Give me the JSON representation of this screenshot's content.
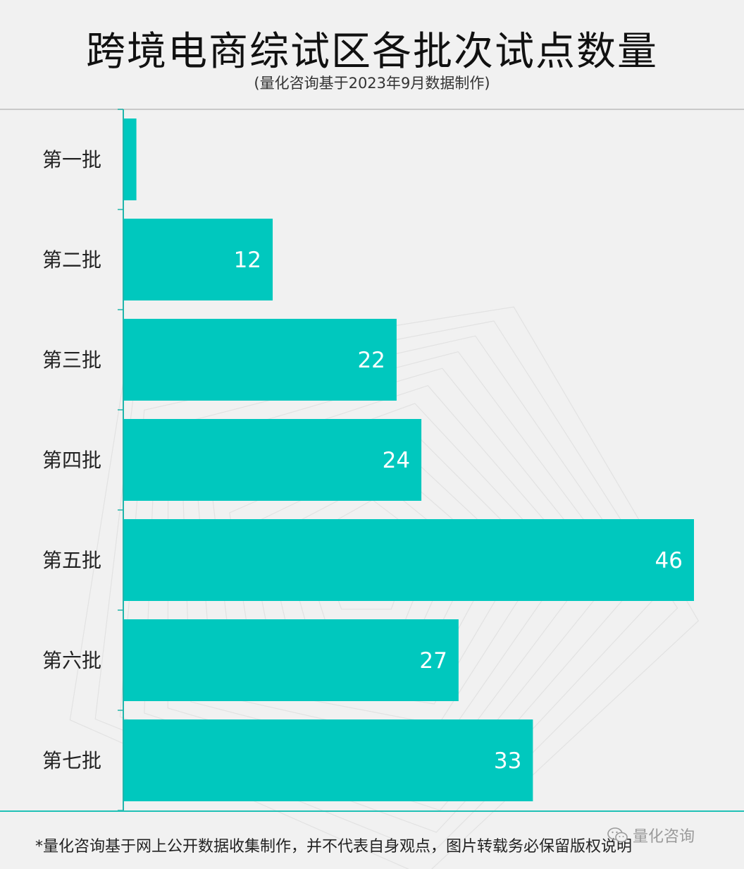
{
  "title": "跨境电商综试区各批次试点数量",
  "subtitle": "(量化咨询基于2023年9月数据制作)",
  "footer_note": "*量化咨询基于网上公开数据收集制作，并不代表自身观点，图片转载务必保留版权说明",
  "brand": {
    "name": "量化咨询",
    "icon": "wechat-icon"
  },
  "colors": {
    "bar": "#00c8be",
    "axis": "#20b5ab",
    "label_in_bar": "#ffffff",
    "category_text": "#222222"
  },
  "chart_data": {
    "type": "bar",
    "orientation": "horizontal",
    "categories": [
      "第一批",
      "第二批",
      "第三批",
      "第四批",
      "第五批",
      "第六批",
      "第七批"
    ],
    "values": [
      1,
      12,
      22,
      24,
      46,
      27,
      33
    ],
    "data_labels": [
      "",
      "12",
      "22",
      "24",
      "46",
      "27",
      "33"
    ],
    "title": "跨境电商综试区各批次试点数量",
    "xlabel": "",
    "ylabel": "",
    "xlim": [
      0,
      46
    ],
    "grid": false,
    "legend": "none"
  }
}
